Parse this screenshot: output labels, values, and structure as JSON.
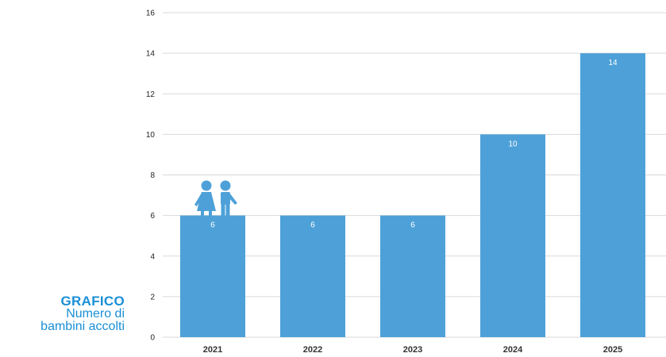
{
  "caption": {
    "title": "GRAFICO",
    "line1": "Numero di",
    "line2": "bambini accolti"
  },
  "colors": {
    "bar": "#4ea1d8",
    "grid": "#d9d9d9",
    "accent": "#1a8fd6"
  },
  "icon": "children-icon",
  "chart_data": {
    "type": "bar",
    "categories": [
      "2021",
      "2022",
      "2023",
      "2024",
      "2025"
    ],
    "values": [
      6,
      6,
      6,
      10,
      14
    ],
    "data_labels": [
      "6",
      "6",
      "6",
      "10",
      "14"
    ],
    "yticks": [
      "0",
      "2",
      "4",
      "6",
      "8",
      "10",
      "12",
      "14",
      "16"
    ],
    "ylim": [
      0,
      16
    ],
    "grid": true,
    "title": "",
    "xlabel": "",
    "ylabel": ""
  }
}
